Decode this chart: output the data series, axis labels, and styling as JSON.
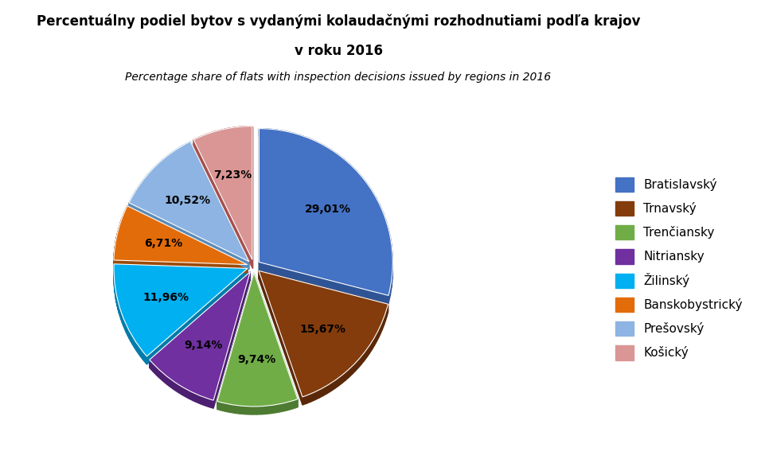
{
  "title_line1": "Percentuálny podiel bytov s vydanými kolaudačnými rozhodnutiami podľa krajov",
  "title_line2": "v roku 2016",
  "subtitle": "Percentage share of flats with inspection decisions issued by regions in 2016",
  "labels": [
    "Bratislavský",
    "Trnavský",
    "Trenčiansky",
    "Nitriansky",
    "Žilinský",
    "Banskobystrický",
    "Prešovský",
    "Košický"
  ],
  "values": [
    29.01,
    15.67,
    9.74,
    9.14,
    11.96,
    6.71,
    10.52,
    7.23
  ],
  "colors": [
    "#4472C4",
    "#843C0C",
    "#70AD47",
    "#7030A0",
    "#00B0F0",
    "#E36C0A",
    "#8DB4E2",
    "#DA9694"
  ],
  "shadow_colors": [
    "#2F5496",
    "#5A2809",
    "#4E7B32",
    "#4D1F70",
    "#007BAA",
    "#9C4A07",
    "#5B8CB8",
    "#A6504E"
  ],
  "background_color": "#FFFFFF",
  "title_fontsize": 12,
  "subtitle_fontsize": 10,
  "legend_fontsize": 11,
  "pct_fontsize": 10,
  "startangle": 90,
  "explode_bratislavsky": 0.08,
  "depth": 0.15
}
